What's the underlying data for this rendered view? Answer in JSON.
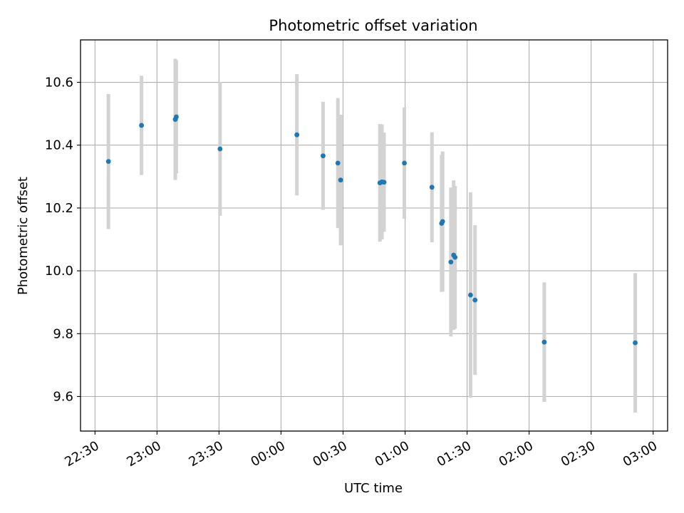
{
  "chart_data": {
    "type": "scatter",
    "title": "Photometric offset variation",
    "xlabel": "UTC time",
    "ylabel": "Photometric offset",
    "grid": true,
    "x_unit": "UTC time of night, spanning midnight",
    "xlim": [
      "22:23",
      "03:07"
    ],
    "ylim": [
      9.49,
      10.735
    ],
    "x_ticks": [
      "22:30",
      "23:00",
      "23:30",
      "00:00",
      "00:30",
      "01:00",
      "01:30",
      "02:00",
      "02:30",
      "03:00"
    ],
    "y_ticks": [
      9.6,
      9.8,
      10.0,
      10.2,
      10.4,
      10.6
    ],
    "y_tick_labels": [
      "9.6",
      "9.8",
      "10.0",
      "10.2",
      "10.4",
      "10.6"
    ],
    "colors": {
      "point": "#1f77b4",
      "errorbar": "#d3d3d3",
      "grid": "#b0b0b0"
    },
    "points": [
      {
        "x": "22:36:30",
        "y": 10.348,
        "yerr": 0.215
      },
      {
        "x": "22:52:30",
        "y": 10.463,
        "yerr": 0.158
      },
      {
        "x": "23:08:50",
        "y": 10.482,
        "yerr": 0.193
      },
      {
        "x": "23:09:20",
        "y": 10.49,
        "yerr": 0.18
      },
      {
        "x": "23:30:30",
        "y": 10.388,
        "yerr": 0.213
      },
      {
        "x": "00:07:40",
        "y": 10.433,
        "yerr": 0.193
      },
      {
        "x": "00:20:20",
        "y": 10.366,
        "yerr": 0.172
      },
      {
        "x": "00:27:30",
        "y": 10.343,
        "yerr": 0.207
      },
      {
        "x": "00:28:50",
        "y": 10.289,
        "yerr": 0.208
      },
      {
        "x": "00:47:50",
        "y": 10.28,
        "yerr": 0.187
      },
      {
        "x": "00:48:50",
        "y": 10.283,
        "yerr": 0.183
      },
      {
        "x": "00:49:50",
        "y": 10.282,
        "yerr": 0.158
      },
      {
        "x": "00:59:40",
        "y": 10.343,
        "yerr": 0.177
      },
      {
        "x": "01:13:00",
        "y": 10.266,
        "yerr": 0.175
      },
      {
        "x": "01:17:40",
        "y": 10.151,
        "yerr": 0.218
      },
      {
        "x": "01:18:10",
        "y": 10.157,
        "yerr": 0.223
      },
      {
        "x": "01:22:10",
        "y": 10.028,
        "yerr": 0.237
      },
      {
        "x": "01:23:30",
        "y": 10.05,
        "yerr": 0.238
      },
      {
        "x": "01:24:10",
        "y": 10.043,
        "yerr": 0.227
      },
      {
        "x": "01:31:40",
        "y": 9.923,
        "yerr": 0.327
      },
      {
        "x": "01:33:50",
        "y": 9.907,
        "yerr": 0.238
      },
      {
        "x": "02:07:20",
        "y": 9.773,
        "yerr": 0.19
      },
      {
        "x": "02:51:20",
        "y": 9.771,
        "yerr": 0.222
      }
    ]
  }
}
